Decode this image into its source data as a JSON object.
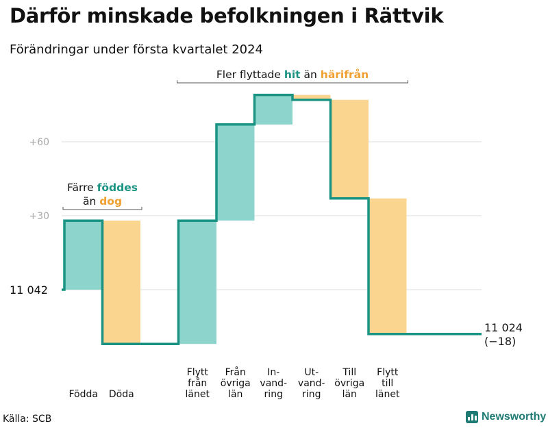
{
  "title": "Därför minskade befolkningen i Rättvik",
  "subtitle": "Förändringar under första kvartalet 2024",
  "source": "Källa: SCB",
  "brand": {
    "name": "Newsworthy",
    "icon": "bar-chart-logo-icon"
  },
  "colors": {
    "increase": "#8dd5cc",
    "decrease": "#fad590",
    "line": "#1a9383",
    "hit_text": "#1a9383",
    "harifran_text": "#f0a030"
  },
  "chart_data": {
    "type": "waterfall",
    "start": {
      "label": "11  042",
      "value": 11042
    },
    "end": {
      "label": "11 024",
      "change_label": "(−18)",
      "value": 11024
    },
    "yaxis": {
      "ticks": [
        {
          "label": "+60",
          "value": 60
        },
        {
          "label": "+30",
          "value": 30
        }
      ],
      "ylim": [
        -25,
        85
      ],
      "grid": true
    },
    "steps": [
      {
        "label_lines": [
          "Födda"
        ],
        "change": 28,
        "direction": "increase"
      },
      {
        "label_lines": [
          "Döda"
        ],
        "change": -50,
        "direction": "decrease"
      },
      {
        "label_lines": [
          "Flytt",
          "från",
          "länet"
        ],
        "change": 50,
        "direction": "increase"
      },
      {
        "label_lines": [
          "Från",
          "övriga",
          "län"
        ],
        "change": 39,
        "direction": "increase"
      },
      {
        "label_lines": [
          "In-",
          "vand-",
          "ring"
        ],
        "change": 12,
        "direction": "increase"
      },
      {
        "label_lines": [
          "Ut-",
          "vand-",
          "ring"
        ],
        "change": -2,
        "direction": "decrease"
      },
      {
        "label_lines": [
          "Till",
          "övriga",
          "län"
        ],
        "change": -40,
        "direction": "decrease"
      },
      {
        "label_lines": [
          "Flytt",
          "till",
          "länet"
        ],
        "change": -55,
        "direction": "decrease"
      }
    ],
    "annotations": [
      {
        "parts": [
          {
            "text": "Färre ",
            "style": "plain"
          },
          {
            "text": "föddes",
            "style": "increase"
          }
        ],
        "line2": [
          {
            "text": "än ",
            "style": "plain"
          },
          {
            "text": "dog",
            "style": "decrease"
          }
        ],
        "spans_steps": [
          0,
          1
        ]
      },
      {
        "parts": [
          {
            "text": "Fler flyttade ",
            "style": "plain"
          },
          {
            "text": "hit",
            "style": "increase"
          },
          {
            "text": " än ",
            "style": "plain"
          },
          {
            "text": "härifrån",
            "style": "decrease"
          }
        ],
        "spans_steps": [
          2,
          7
        ]
      }
    ]
  }
}
